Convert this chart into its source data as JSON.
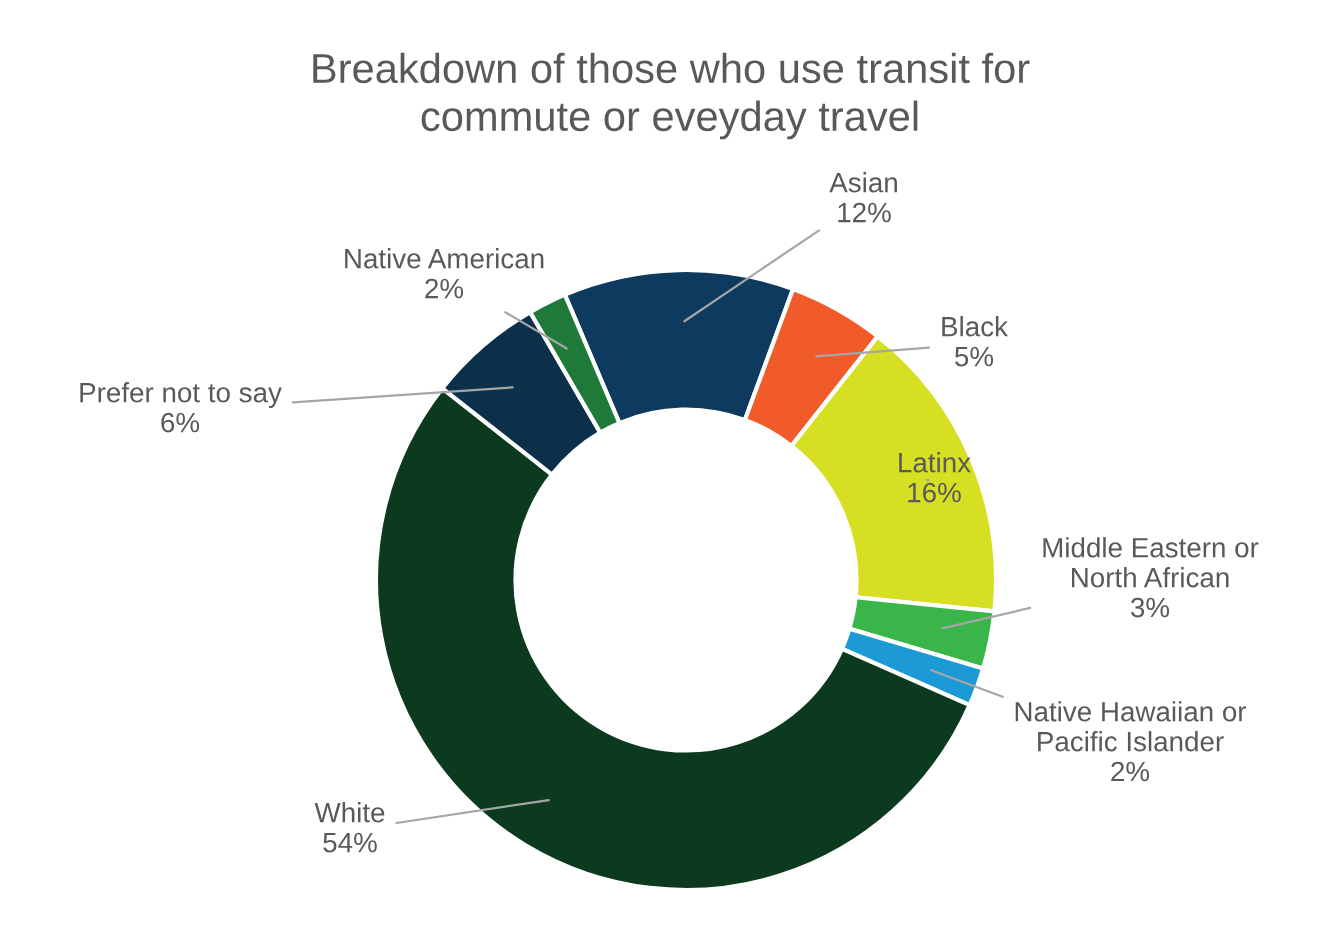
{
  "chart_data": {
    "type": "donut",
    "title": "Breakdown of those who use transit for commute or eveyday travel",
    "categories": [
      "Asian",
      "Black",
      "Latinx",
      "Middle Eastern or North African",
      "Native Hawaiian or Pacific Islander",
      "White",
      "Prefer not to say",
      "Native American"
    ],
    "values": [
      12,
      5,
      16,
      3,
      2,
      54,
      6,
      2
    ],
    "value_labels": [
      "12%",
      "5%",
      "16%",
      "3%",
      "2%",
      "54%",
      "6%",
      "2%"
    ],
    "colors": [
      "#0f3a5f",
      "#f15a29",
      "#d7df23",
      "#39b54a",
      "#1b9ad6",
      "#0b3a1e",
      "#0c2f4a",
      "#1f7a3a"
    ],
    "legend": false
  }
}
